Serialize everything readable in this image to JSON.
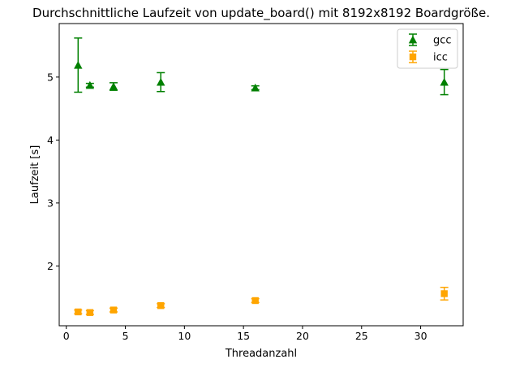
{
  "chart_data": {
    "type": "scatter",
    "title": "Durchschnittliche Laufzeit von update_board() mit 8192x8192 Boardgröße.",
    "xlabel": "Threadanzahl",
    "ylabel": "Laufzeit [s]",
    "xlim": [
      -0.6,
      33.6
    ],
    "ylim": [
      1.05,
      5.85
    ],
    "xticks": [
      "0",
      "5",
      "10",
      "15",
      "20",
      "25",
      "30"
    ],
    "yticks": [
      "2",
      "3",
      "4",
      "5"
    ],
    "grid": false,
    "legend_position": "top-right",
    "series": [
      {
        "name": "gcc",
        "color": "#008000",
        "marker": "triangle",
        "x": [
          1,
          2,
          4,
          8,
          16,
          32
        ],
        "y": [
          5.19,
          4.87,
          4.85,
          4.92,
          4.83,
          4.92
        ],
        "yerr": [
          0.43,
          0.03,
          0.06,
          0.15,
          0.03,
          0.2
        ]
      },
      {
        "name": "icc",
        "color": "#ffa500",
        "marker": "square",
        "x": [
          1,
          2,
          4,
          8,
          16,
          32
        ],
        "y": [
          1.27,
          1.26,
          1.3,
          1.37,
          1.45,
          1.56
        ],
        "yerr": [
          0.03,
          0.03,
          0.03,
          0.03,
          0.03,
          0.1
        ]
      }
    ]
  }
}
